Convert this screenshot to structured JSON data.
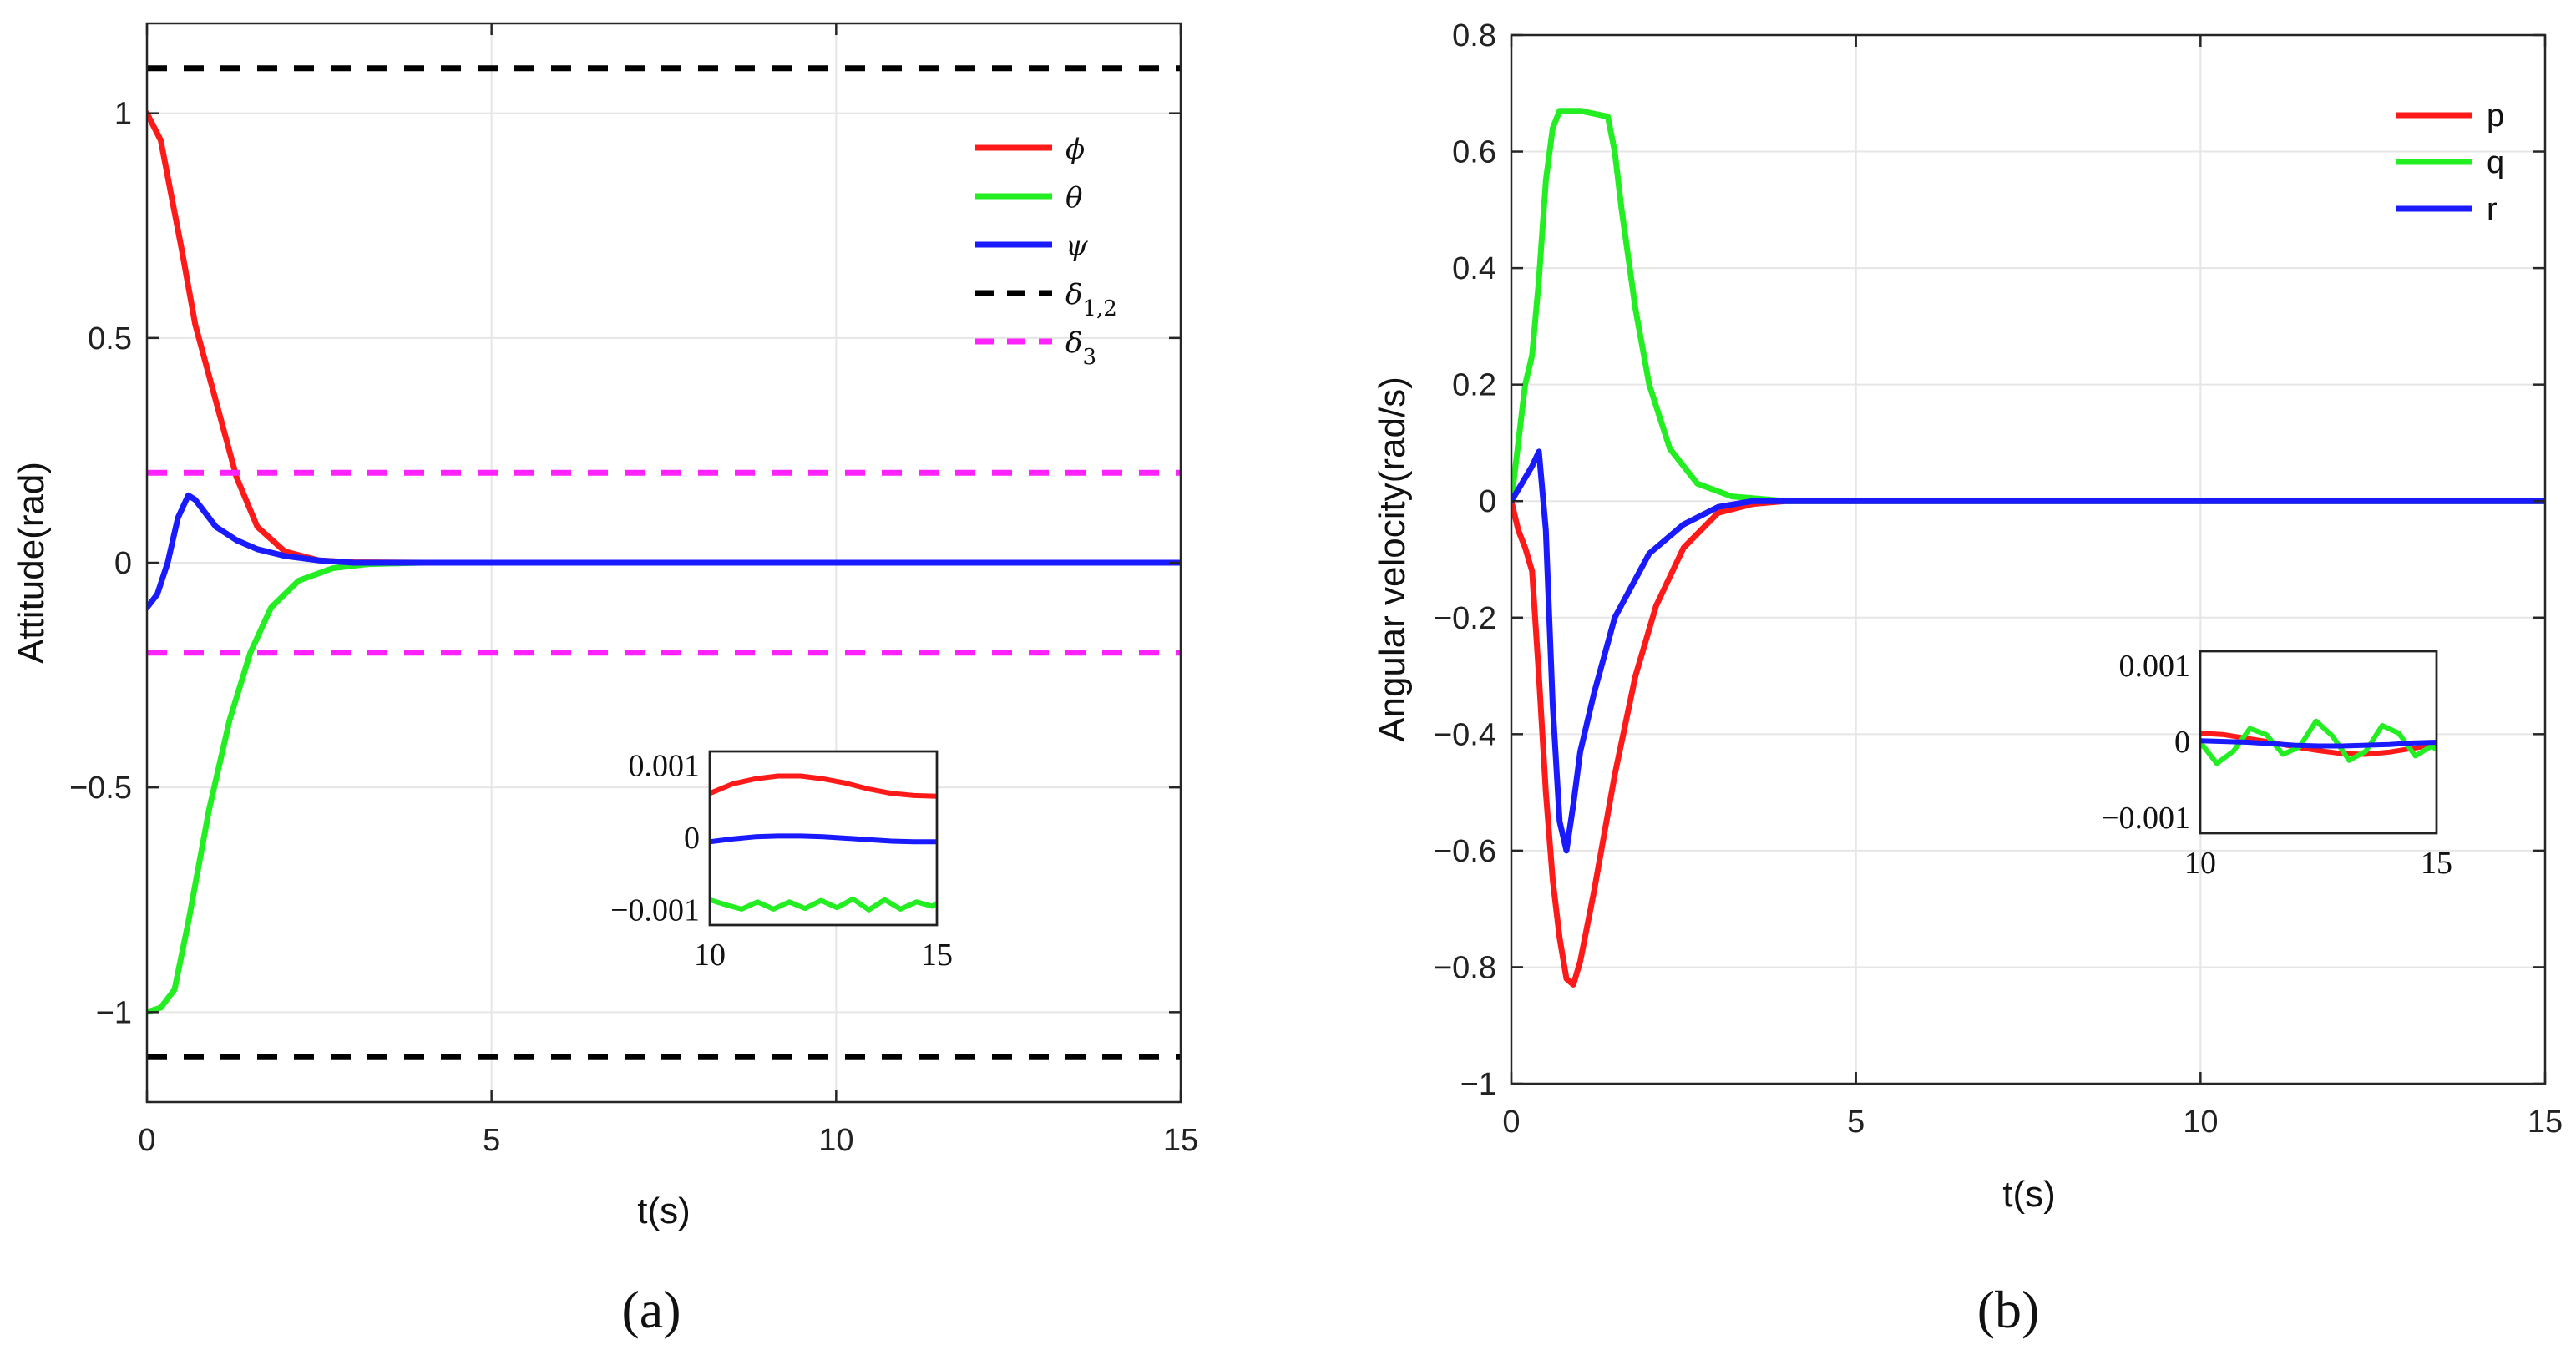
{
  "colors": {
    "red": "#ff1a1a",
    "green": "#22ee22",
    "blue": "#1a1aff",
    "black": "#000000",
    "magenta": "#ff22ff",
    "grid": "#e6e6e6"
  },
  "chart_data": [
    {
      "type": "line",
      "panel_label": "(a)",
      "xlabel": "t(s)",
      "ylabel": "Attitude(rad)",
      "xlim": [
        0,
        15
      ],
      "ylim": [
        -1.2,
        1.2
      ],
      "xticks": [
        0,
        5,
        10,
        15
      ],
      "yticks": [
        -1,
        -0.5,
        0,
        0.5,
        1
      ],
      "ytick_labels": [
        "−1",
        "−0.5",
        "0",
        "0.5",
        "1"
      ],
      "grid": true,
      "legend_position": "top-right",
      "series": [
        {
          "name": "ϕ",
          "color": "red",
          "style": "solid",
          "x": [
            0,
            0.2,
            0.5,
            0.7,
            1.0,
            1.3,
            1.6,
            2.0,
            2.5,
            3.0,
            4.0,
            15
          ],
          "y": [
            1.0,
            0.94,
            0.7,
            0.53,
            0.36,
            0.19,
            0.08,
            0.025,
            0.005,
            0.001,
            0.0,
            0.0
          ]
        },
        {
          "name": "θ",
          "color": "green",
          "style": "solid",
          "x": [
            0,
            0.2,
            0.4,
            0.6,
            0.9,
            1.2,
            1.5,
            1.8,
            2.2,
            2.7,
            3.2,
            4.0,
            15
          ],
          "y": [
            -1.0,
            -0.99,
            -0.95,
            -0.8,
            -0.55,
            -0.35,
            -0.2,
            -0.1,
            -0.04,
            -0.012,
            -0.003,
            0.0,
            0.0
          ]
        },
        {
          "name": "ψ",
          "color": "blue",
          "style": "solid",
          "x": [
            0,
            0.15,
            0.3,
            0.45,
            0.6,
            0.7,
            0.85,
            1.0,
            1.3,
            1.6,
            2.0,
            2.5,
            3.0,
            15
          ],
          "y": [
            -0.1,
            -0.07,
            0.0,
            0.1,
            0.15,
            0.14,
            0.11,
            0.08,
            0.05,
            0.03,
            0.015,
            0.005,
            0.0,
            0.0
          ]
        },
        {
          "name": "δ₁,₂",
          "color": "black",
          "style": "dashed",
          "x": [
            0,
            15
          ],
          "y": [
            1.1,
            1.1
          ]
        },
        {
          "name": "δ₁,₂ (lower)",
          "color": "black",
          "style": "dashed",
          "legend": false,
          "x": [
            0,
            15
          ],
          "y": [
            -1.1,
            -1.1
          ]
        },
        {
          "name": "δ₃",
          "color": "magenta",
          "style": "dashed",
          "x": [
            0,
            15
          ],
          "y": [
            0.2,
            0.2
          ]
        },
        {
          "name": "δ₃ (lower)",
          "color": "magenta",
          "style": "dashed",
          "legend": false,
          "x": [
            0,
            15
          ],
          "y": [
            -0.2,
            -0.2
          ]
        }
      ],
      "legend": [
        {
          "label": "ϕ",
          "color": "red",
          "style": "solid"
        },
        {
          "label": "θ",
          "color": "green",
          "style": "solid"
        },
        {
          "label": "ψ",
          "color": "blue",
          "style": "solid"
        },
        {
          "label": "δ",
          "sub": "1,2",
          "color": "black",
          "style": "dashed"
        },
        {
          "label": "δ",
          "sub": "3",
          "color": "magenta",
          "style": "dashed"
        }
      ],
      "inset": {
        "xlim": [
          10,
          15
        ],
        "ylim": [
          -0.0012,
          0.0012
        ],
        "xticks": [
          10,
          15
        ],
        "yticks": [
          0.001,
          0,
          -0.001
        ],
        "ytick_labels": [
          "0.001",
          "0",
          "−0.001"
        ],
        "series": [
          {
            "name": "ϕ",
            "color": "red",
            "x": [
              10,
              10.5,
              11,
              11.5,
              12,
              12.5,
              13,
              13.5,
              14,
              14.5,
              15
            ],
            "y": [
              0.00062,
              0.00075,
              0.00082,
              0.00086,
              0.00086,
              0.00082,
              0.00076,
              0.00068,
              0.00062,
              0.00059,
              0.00058
            ]
          },
          {
            "name": "ψ",
            "color": "blue",
            "x": [
              10,
              10.5,
              11,
              11.5,
              12,
              12.5,
              13,
              13.5,
              14,
              14.5,
              15
            ],
            "y": [
              -5e-05,
              -1e-05,
              2e-05,
              3e-05,
              3e-05,
              2e-05,
              0.0,
              -2e-05,
              -4e-05,
              -5e-05,
              -5e-05
            ]
          },
          {
            "name": "θ",
            "color": "green",
            "x": [
              10,
              10.35,
              10.7,
              11.05,
              11.4,
              11.75,
              12.1,
              12.45,
              12.8,
              13.15,
              13.5,
              13.85,
              14.2,
              14.55,
              14.9,
              15
            ],
            "y": [
              -0.00085,
              -0.00092,
              -0.00098,
              -0.00088,
              -0.00098,
              -0.00088,
              -0.00097,
              -0.00086,
              -0.00096,
              -0.00084,
              -0.00099,
              -0.00085,
              -0.00098,
              -0.00088,
              -0.00094,
              -0.0009
            ]
          }
        ]
      }
    },
    {
      "type": "line",
      "panel_label": "(b)",
      "xlabel": "t(s)",
      "ylabel": "Angular velocity(rad/s)",
      "xlim": [
        0,
        15
      ],
      "ylim": [
        -1,
        0.8
      ],
      "xticks": [
        0,
        5,
        10,
        15
      ],
      "yticks": [
        -1,
        -0.8,
        -0.6,
        -0.4,
        -0.2,
        0,
        0.2,
        0.4,
        0.6,
        0.8
      ],
      "ytick_labels": [
        "−1",
        "−0.8",
        "−0.6",
        "−0.4",
        "−0.2",
        "0",
        "0.2",
        "0.4",
        "0.6",
        "0.8"
      ],
      "grid": true,
      "legend_position": "top-right",
      "series": [
        {
          "name": "p",
          "color": "red",
          "style": "solid",
          "x": [
            0,
            0.1,
            0.2,
            0.3,
            0.4,
            0.5,
            0.6,
            0.7,
            0.8,
            0.9,
            1.0,
            1.2,
            1.5,
            1.8,
            2.1,
            2.5,
            3.0,
            3.5,
            4.0,
            15
          ],
          "y": [
            0,
            -0.05,
            -0.08,
            -0.12,
            -0.3,
            -0.5,
            -0.65,
            -0.75,
            -0.82,
            -0.83,
            -0.79,
            -0.67,
            -0.47,
            -0.3,
            -0.18,
            -0.08,
            -0.02,
            -0.005,
            0.0,
            0.0
          ]
        },
        {
          "name": "q",
          "color": "green",
          "style": "solid",
          "x": [
            0,
            0.1,
            0.2,
            0.3,
            0.4,
            0.5,
            0.6,
            0.7,
            0.8,
            1.0,
            1.2,
            1.4,
            1.5,
            1.6,
            1.8,
            2.0,
            2.3,
            2.7,
            3.2,
            4.0,
            15
          ],
          "y": [
            0,
            0.1,
            0.2,
            0.25,
            0.38,
            0.55,
            0.64,
            0.67,
            0.67,
            0.67,
            0.665,
            0.66,
            0.6,
            0.5,
            0.33,
            0.2,
            0.09,
            0.03,
            0.008,
            0.0,
            0.0
          ]
        },
        {
          "name": "r",
          "color": "blue",
          "style": "solid",
          "x": [
            0,
            0.15,
            0.3,
            0.4,
            0.5,
            0.6,
            0.7,
            0.8,
            0.9,
            1.0,
            1.2,
            1.5,
            2.0,
            2.5,
            3.0,
            3.5,
            15
          ],
          "y": [
            0,
            0.03,
            0.06,
            0.085,
            -0.05,
            -0.35,
            -0.55,
            -0.6,
            -0.52,
            -0.43,
            -0.33,
            -0.2,
            -0.09,
            -0.04,
            -0.01,
            0.0,
            0.0
          ]
        }
      ],
      "legend": [
        {
          "label": "p",
          "color": "red",
          "style": "solid"
        },
        {
          "label": "q",
          "color": "green",
          "style": "solid"
        },
        {
          "label": "r",
          "color": "blue",
          "style": "solid"
        }
      ],
      "inset": {
        "xlim": [
          10,
          15
        ],
        "ylim": [
          -0.0012,
          0.0012
        ],
        "xticks": [
          10,
          15
        ],
        "yticks": [
          0.001,
          0,
          -0.001
        ],
        "ytick_labels": [
          "0.001",
          "0",
          "−0.001"
        ],
        "series": [
          {
            "name": "p",
            "color": "red",
            "x": [
              10,
              10.5,
              11,
              11.5,
              12,
              12.5,
              13,
              13.5,
              14,
              14.5,
              15
            ],
            "y": [
              0.00012,
              0.0001,
              5e-05,
              0.0,
              -6e-05,
              -0.00011,
              -0.00015,
              -0.00016,
              -0.00013,
              -8e-05,
              -3e-05
            ]
          },
          {
            "name": "q",
            "color": "green",
            "x": [
              10,
              10.35,
              10.7,
              11.05,
              11.4,
              11.75,
              12.1,
              12.45,
              12.8,
              13.15,
              13.5,
              13.85,
              14.2,
              14.55,
              14.9,
              15
            ],
            "y": [
              0.0,
              -0.00028,
              -0.00012,
              0.00018,
              0.0001,
              -0.00016,
              -6e-05,
              0.00028,
              8e-05,
              -0.00024,
              -0.00012,
              0.00022,
              0.00012,
              -0.00018,
              -5e-05,
              -0.0001
            ]
          },
          {
            "name": "r",
            "color": "blue",
            "x": [
              10,
              10.5,
              11,
              11.5,
              12,
              12.5,
              13,
              13.5,
              14,
              14.5,
              15
            ],
            "y": [
              2e-05,
              1e-05,
              0.0,
              -2e-05,
              -4e-05,
              -5e-05,
              -5e-05,
              -4e-05,
              -3e-05,
              -1e-05,
              0.0
            ]
          }
        ]
      }
    }
  ]
}
